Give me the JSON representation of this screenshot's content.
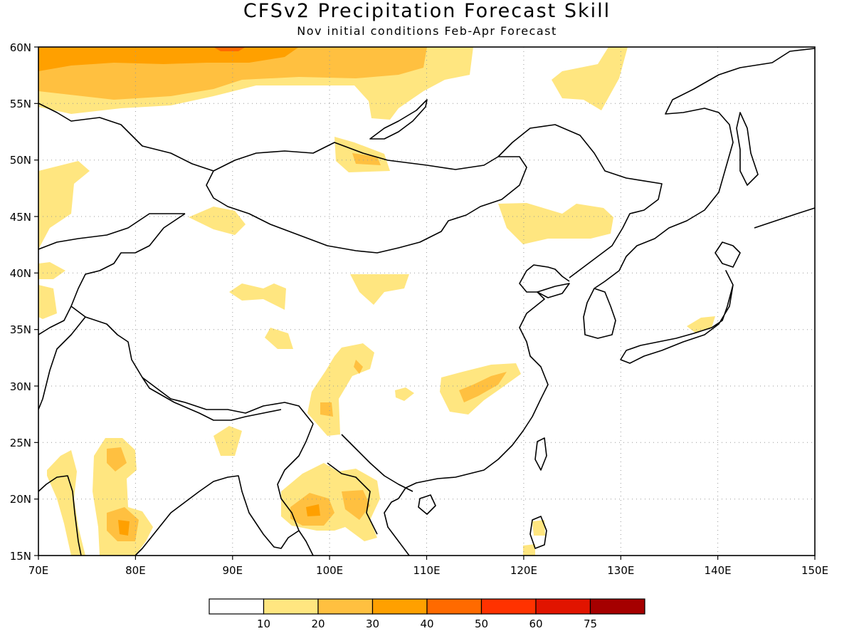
{
  "map": {
    "title": "CFSv2 Precipitation Forecast Skill",
    "subtitle": "Nov initial conditions  Feb-Apr Forecast",
    "lon_labels": [
      "70E",
      "80E",
      "90E",
      "100E",
      "110E",
      "120E",
      "130E",
      "140E",
      "150E"
    ],
    "lat_labels": [
      "60N",
      "55N",
      "50N",
      "45N",
      "40N",
      "35N",
      "30N",
      "25N",
      "20N",
      "15N"
    ],
    "region": "East Asia (70E-150E, 15N-60N)"
  },
  "legend": {
    "thresholds": [
      "10",
      "20",
      "30",
      "40",
      "50",
      "60",
      "75"
    ],
    "colors": [
      "#ffffff",
      "#ffe680",
      "#ffc040",
      "#ffa000",
      "#ff6a00",
      "#ff3200",
      "#e11400",
      "#a50000"
    ]
  }
}
